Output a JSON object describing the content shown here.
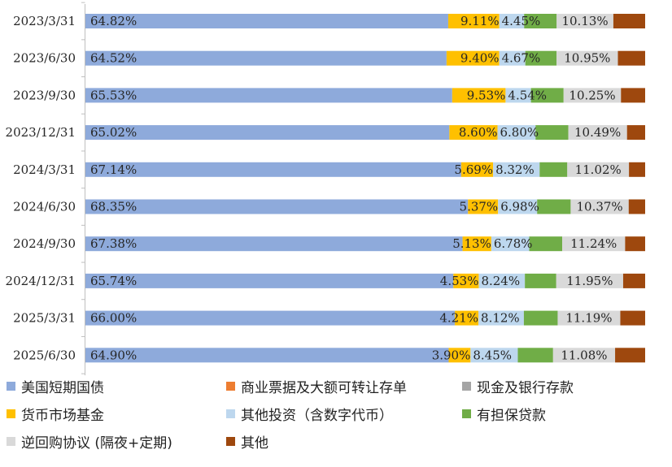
{
  "chart_data": {
    "type": "bar",
    "orientation": "horizontal",
    "stacked": "percent",
    "categories": [
      "2023/3/31",
      "2023/6/30",
      "2023/9/30",
      "2023/12/31",
      "2024/3/31",
      "2024/6/30",
      "2024/9/30",
      "2024/12/31",
      "2025/3/31",
      "2025/6/30"
    ],
    "series": [
      {
        "name": "美国短期国债",
        "color": "#8EAADB",
        "values": [
          64.82,
          64.52,
          65.53,
          65.02,
          67.14,
          68.35,
          67.38,
          65.74,
          66.0,
          64.9
        ],
        "labels": [
          "64.82%",
          "64.52%",
          "65.53%",
          "65.02%",
          "67.14%",
          "68.35%",
          "67.38%",
          "65.74%",
          "66.00%",
          "64.90%"
        ]
      },
      {
        "name": "商业票据及大额可转让存单",
        "color": "#ED7D31",
        "values": [
          0,
          0,
          0,
          0,
          0,
          0,
          0,
          0,
          0,
          0
        ],
        "labels": []
      },
      {
        "name": "现金及银行存款",
        "color": "#A5A5A5",
        "values": [
          0,
          0,
          0,
          0,
          0,
          0,
          0,
          0,
          0,
          0
        ],
        "labels": []
      },
      {
        "name": "货币市场基金",
        "color": "#FFC000",
        "values": [
          9.11,
          9.4,
          9.53,
          8.6,
          5.69,
          5.37,
          5.13,
          4.53,
          4.21,
          3.9
        ],
        "labels": [
          "9.11%",
          "9.40%",
          "9.53%",
          "8.60%",
          "5.69%",
          "5.37%",
          "5.13%",
          "4.53%",
          "4.21%",
          "3.90%"
        ]
      },
      {
        "name": "其他投资（含数字代币）",
        "color": "#BDD7EE",
        "values": [
          4.45,
          4.67,
          4.54,
          6.8,
          8.32,
          6.98,
          6.78,
          8.24,
          8.12,
          8.45
        ],
        "labels": [
          "4.45%",
          "4.67%",
          "4.54%",
          "6.80%",
          "8.32%",
          "6.98%",
          "6.78%",
          "8.24%",
          "8.12%",
          "8.45%"
        ]
      },
      {
        "name": "有担保贷款",
        "color": "#70AD47",
        "values": [
          5.81,
          5.59,
          5.83,
          5.85,
          4.94,
          5.99,
          5.89,
          5.61,
          6.04,
          6.3
        ],
        "labels": []
      },
      {
        "name": "逆回购协议 (隔夜+定期)",
        "color": "#D9D9D9",
        "values": [
          10.13,
          10.95,
          10.25,
          10.49,
          11.02,
          10.37,
          11.24,
          11.95,
          11.19,
          11.08
        ],
        "labels": [
          "10.13%",
          "10.95%",
          "10.25%",
          "10.49%",
          "11.02%",
          "10.37%",
          "11.24%",
          "11.95%",
          "11.19%",
          "11.08%"
        ]
      },
      {
        "name": "其他",
        "color": "#9E480E",
        "values": [
          5.68,
          4.87,
          4.32,
          3.24,
          2.89,
          2.94,
          3.58,
          3.93,
          4.44,
          5.37
        ],
        "labels": []
      }
    ],
    "xlim": [
      0,
      100
    ],
    "grid": false,
    "legend_position": "bottom"
  }
}
